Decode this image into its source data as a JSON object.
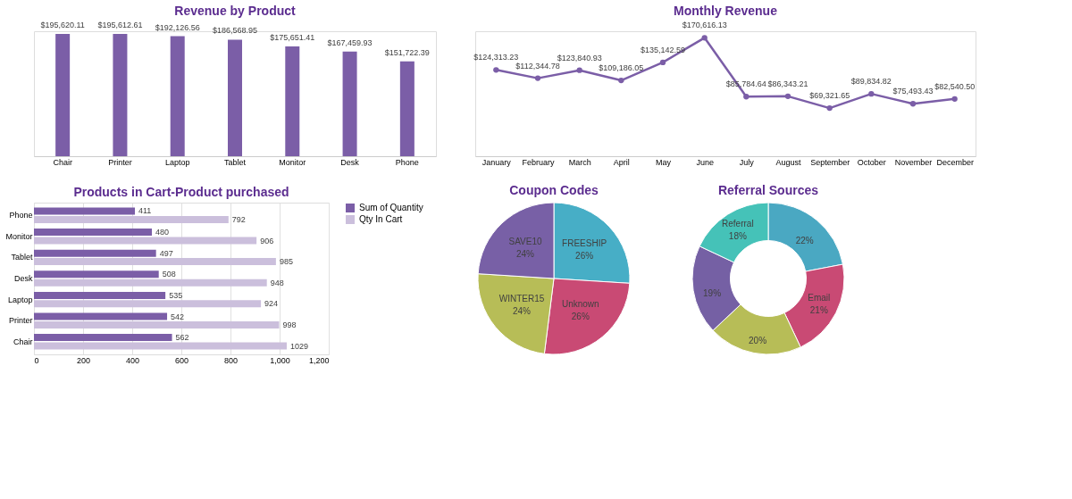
{
  "chart_data": [
    {
      "type": "bar",
      "title": "Revenue by Product",
      "categories": [
        "Chair",
        "Printer",
        "Laptop",
        "Tablet",
        "Monitor",
        "Desk",
        "Phone"
      ],
      "series": [
        {
          "color": "#7b5ea7",
          "values": [
            195620.11,
            195612.61,
            192126.56,
            186568.95,
            175651.41,
            167459.93,
            151722.39
          ],
          "value_labels": [
            "$195,620.11",
            "$195,612.61",
            "$192,126.56",
            "$186,568.95",
            "$175,651.41",
            "$167,459.93",
            "$151,722.39"
          ]
        }
      ],
      "legend": false
    },
    {
      "type": "line",
      "title": "Monthly Revenue",
      "categories": [
        "January",
        "February",
        "March",
        "April",
        "May",
        "June",
        "July",
        "August",
        "September",
        "October",
        "November",
        "December"
      ],
      "series": [
        {
          "color": "#7b5ea7",
          "values": [
            124313.23,
            112344.78,
            123840.93,
            109186.05,
            135142.59,
            170616.13,
            85784.64,
            86343.21,
            69321.65,
            89834.82,
            75493.43,
            82540.5
          ],
          "value_labels": [
            "$124,313.23",
            "$112,344.78",
            "$123,840.93",
            "$109,186.05",
            "$135,142.59",
            "$170,616.13",
            "$85,784.64",
            "$86,343.21",
            "$69,321.65",
            "$89,834.82",
            "$75,493.43",
            "$82,540.50"
          ]
        }
      ],
      "marker": "circle",
      "legend": false
    },
    {
      "type": "bar",
      "orientation": "horizontal",
      "title": "Products in Cart-Product purchased",
      "categories": [
        "Phone",
        "Monitor",
        "Tablet",
        "Desk",
        "Laptop",
        "Printer",
        "Chair"
      ],
      "series": [
        {
          "name": "Sum of Quantity",
          "color": "#7b5ea7",
          "values": [
            411,
            480,
            497,
            508,
            535,
            542,
            562
          ]
        },
        {
          "name": "Qty In Cart",
          "color": "#cbbfdc",
          "values": [
            792,
            906,
            985,
            948,
            924,
            998,
            1029
          ]
        }
      ],
      "xlim": [
        0,
        1200
      ],
      "xticks": [
        0,
        200,
        400,
        600,
        800,
        {
          "value": 1000,
          "label": "1,000"
        },
        {
          "value": 1200,
          "label": "1,200"
        }
      ],
      "grid": "x",
      "data_labels": true,
      "legend": "right"
    },
    {
      "type": "pie",
      "title": "Coupon Codes",
      "categories": [
        "FREESHIP",
        "Unknown",
        "WINTER15",
        "SAVE10"
      ],
      "values": [
        26,
        26,
        24,
        24
      ],
      "value_labels": [
        "26%",
        "26%",
        "24%",
        "24%"
      ],
      "colors": [
        "#47aec6",
        "#c94a74",
        "#b7bd57",
        "#7860a6"
      ],
      "legend": false
    },
    {
      "type": "donut",
      "title": "Referral Sources",
      "categories": [
        null,
        "Email",
        null,
        null,
        "Referral"
      ],
      "values": [
        22,
        21,
        20,
        19,
        18
      ],
      "value_labels": [
        "22%",
        "21%",
        "20%",
        "19%",
        "18%"
      ],
      "colors": [
        "#4aa8c2",
        "#c94a74",
        "#b7bd57",
        "#7560a4",
        "#45c2b8"
      ],
      "legend": false
    }
  ]
}
